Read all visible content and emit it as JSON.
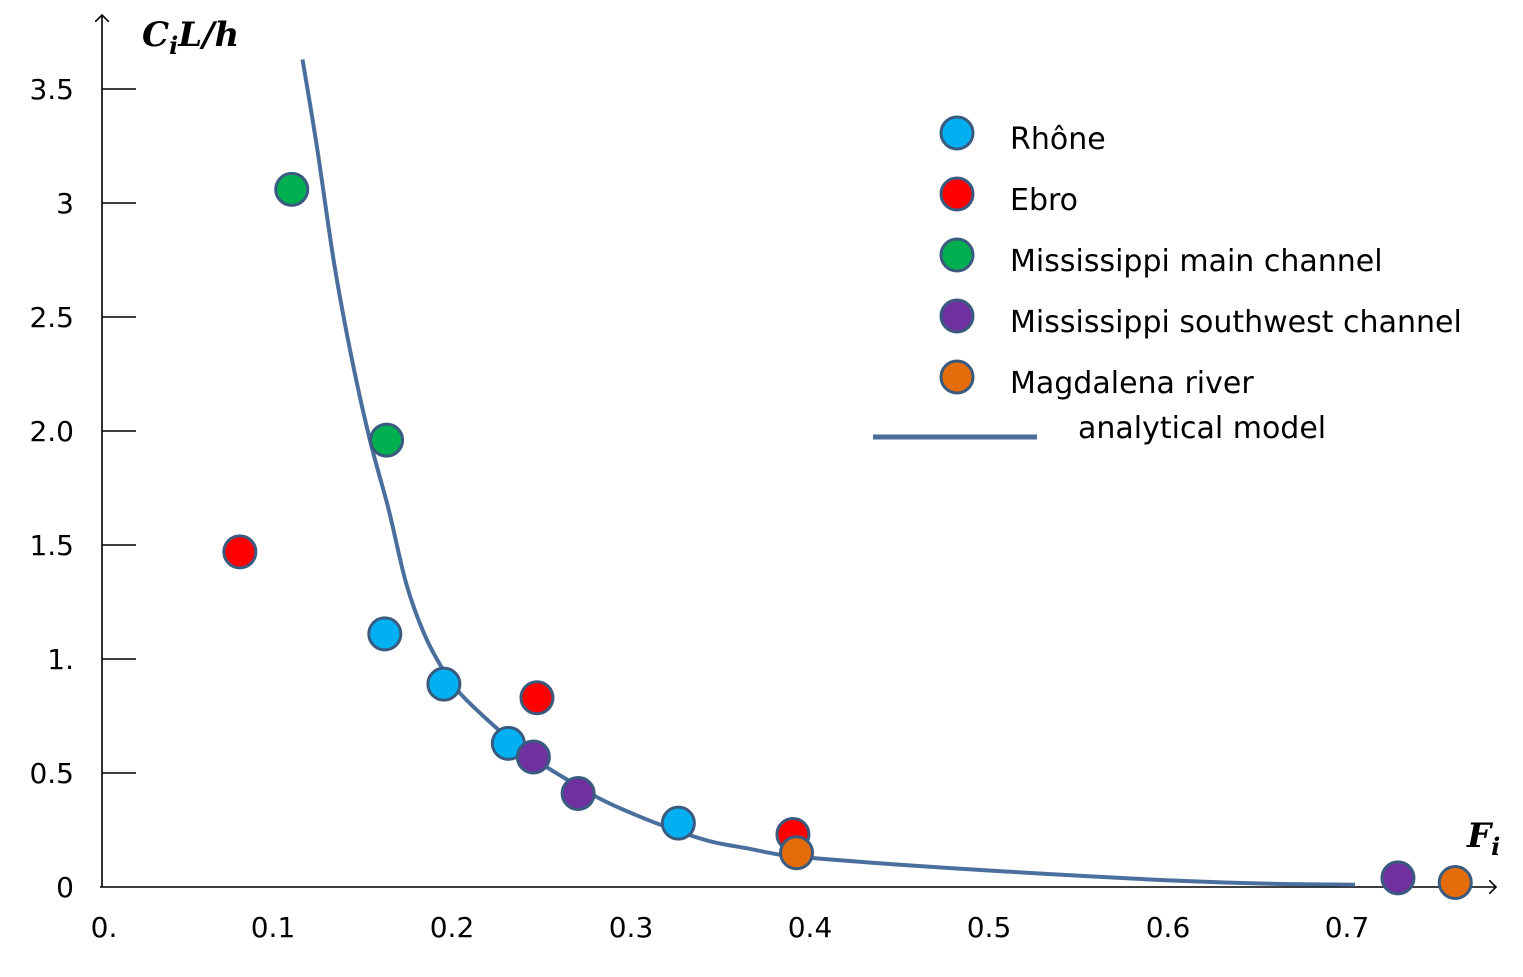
{
  "chart_data": {
    "type": "scatter",
    "xlabel": {
      "main": "F",
      "sub": "i"
    },
    "ylabel": {
      "main": "C",
      "sub": "i",
      "rest": "L/h"
    },
    "x_ticks": [
      {
        "v": 0.0,
        "label": "0."
      },
      {
        "v": 0.1,
        "label": "0.1"
      },
      {
        "v": 0.2,
        "label": "0.2"
      },
      {
        "v": 0.3,
        "label": "0.3"
      },
      {
        "v": 0.4,
        "label": "0.4"
      },
      {
        "v": 0.5,
        "label": "0.5"
      },
      {
        "v": 0.6,
        "label": "0.6"
      },
      {
        "v": 0.7,
        "label": "0.7"
      }
    ],
    "y_ticks": [
      {
        "v": 0,
        "label": "0"
      },
      {
        "v": 0.5,
        "label": "0.5"
      },
      {
        "v": 1.0,
        "label": "1."
      },
      {
        "v": 1.5,
        "label": "1.5"
      },
      {
        "v": 2.0,
        "label": "2.0"
      },
      {
        "v": 2.5,
        "label": "2.5"
      },
      {
        "v": 3.0,
        "label": "3"
      },
      {
        "v": 3.5,
        "label": "3.5"
      }
    ],
    "xlim": [
      0,
      0.78
    ],
    "ylim": [
      0,
      3.8
    ],
    "grid": false,
    "legend_position": "top-right",
    "series": [
      {
        "name": "Rhône",
        "color": "#00b0f0",
        "points": [
          [
            0.158,
            1.11
          ],
          [
            0.191,
            0.89
          ],
          [
            0.227,
            0.63
          ],
          [
            0.322,
            0.28
          ]
        ]
      },
      {
        "name": "Ebro",
        "color": "#ff0000",
        "points": [
          [
            0.077,
            1.47
          ],
          [
            0.243,
            0.83
          ],
          [
            0.386,
            0.23
          ]
        ]
      },
      {
        "name": "Mississippi main channel",
        "color": "#00b050",
        "points": [
          [
            0.106,
            3.06
          ],
          [
            0.159,
            1.96
          ]
        ]
      },
      {
        "name": "Mississippi southwest channel",
        "color": "#7030a0",
        "points": [
          [
            0.241,
            0.57
          ],
          [
            0.266,
            0.41
          ],
          [
            0.724,
            0.04
          ]
        ]
      },
      {
        "name": "Magdalena river",
        "color": "#e46c0a",
        "points": [
          [
            0.388,
            0.15
          ],
          [
            0.756,
            0.02
          ]
        ]
      }
    ],
    "model": {
      "name": "analytical model",
      "color": "#4a6f9c",
      "points": [
        [
          0.112,
          3.63
        ],
        [
          0.12,
          3.25
        ],
        [
          0.13,
          2.72
        ],
        [
          0.14,
          2.3
        ],
        [
          0.15,
          1.95
        ],
        [
          0.16,
          1.66
        ],
        [
          0.17,
          1.33
        ],
        [
          0.18,
          1.11
        ],
        [
          0.19,
          0.96
        ],
        [
          0.2,
          0.85
        ],
        [
          0.22,
          0.7
        ],
        [
          0.24,
          0.57
        ],
        [
          0.26,
          0.47
        ],
        [
          0.28,
          0.38
        ],
        [
          0.3,
          0.31
        ],
        [
          0.32,
          0.25
        ],
        [
          0.34,
          0.2
        ],
        [
          0.36,
          0.17
        ],
        [
          0.38,
          0.14
        ],
        [
          0.4,
          0.125
        ],
        [
          0.45,
          0.095
        ],
        [
          0.5,
          0.07
        ],
        [
          0.55,
          0.048
        ],
        [
          0.6,
          0.028
        ],
        [
          0.65,
          0.015
        ],
        [
          0.7,
          0.01
        ]
      ]
    }
  }
}
